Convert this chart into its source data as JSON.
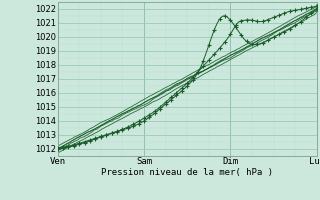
{
  "title": "",
  "xlabel": "Pression niveau de la mer( hPa )",
  "ylabel": "",
  "bg_color": "#cce8dc",
  "grid_color_major": "#99ccb8",
  "grid_color_minor": "#b8ddd0",
  "line_color": "#1a5c2a",
  "xlim": [
    0,
    72
  ],
  "ylim": [
    1011.5,
    1022.5
  ],
  "yticks": [
    1012,
    1013,
    1014,
    1015,
    1016,
    1017,
    1018,
    1019,
    1020,
    1021,
    1022
  ],
  "xtick_labels": [
    "Ven",
    "Sam",
    "Dim",
    "Lun"
  ],
  "xtick_positions": [
    0,
    24,
    48,
    72
  ]
}
